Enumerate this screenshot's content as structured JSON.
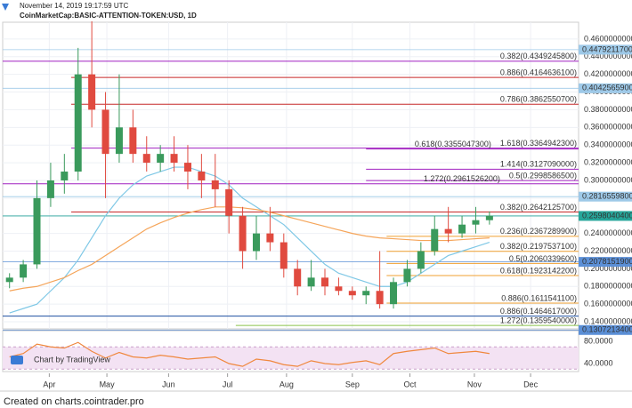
{
  "header": {
    "timestamp": "November 14, 2019 19:17:59 UTC",
    "symbol": "CoinMarketCap:BASIC-ATTENTION-TOKEN:USD, 1D"
  },
  "footer": "Created on charts.cointrader.pro",
  "watermark": "Chart by TradingView",
  "chart_data": [
    {
      "type": "candlestick",
      "grid": true,
      "up_color": "#3a9a5c",
      "down_color": "#e04a3f",
      "xlim": [
        -0.5,
        41.5
      ],
      "xticks": [
        {
          "value": 2.9,
          "label": "Apr"
        },
        {
          "value": 7.1,
          "label": "May"
        },
        {
          "value": 11.6,
          "label": "Jun"
        },
        {
          "value": 15.9,
          "label": "Jul"
        },
        {
          "value": 20.2,
          "label": "Aug"
        },
        {
          "value": 25.0,
          "label": "Sep"
        },
        {
          "value": 29.2,
          "label": "Oct"
        },
        {
          "value": 33.9,
          "label": "Nov"
        },
        {
          "value": 38.0,
          "label": "Dec"
        }
      ],
      "ylim": [
        0.132,
        0.479
      ],
      "yticks": [
        {
          "value": 0.46,
          "label": "0.4600000000"
        },
        {
          "value": 0.44,
          "label": "0.4400000000"
        },
        {
          "value": 0.42,
          "label": "0.4200000000"
        },
        {
          "value": 0.4,
          "label": "0.4000000000"
        },
        {
          "value": 0.38,
          "label": "0.3800000000"
        },
        {
          "value": 0.36,
          "label": "0.3600000000"
        },
        {
          "value": 0.34,
          "label": "0.3400000000"
        },
        {
          "value": 0.32,
          "label": "0.3200000000"
        },
        {
          "value": 0.3,
          "label": "0.3000000000"
        },
        {
          "value": 0.28,
          "label": "0.2800000000"
        },
        {
          "value": 0.26,
          "label": "0.2600000000"
        },
        {
          "value": 0.24,
          "label": "0.2400000000"
        },
        {
          "value": 0.22,
          "label": "0.2200000000"
        },
        {
          "value": 0.2,
          "label": "0.2000000000"
        },
        {
          "value": 0.18,
          "label": "0.1800000000"
        },
        {
          "value": 0.16,
          "label": "0.1600000000"
        },
        {
          "value": 0.14,
          "label": "0.1400000000"
        }
      ],
      "open": [
        0.185,
        0.19,
        0.205,
        0.28,
        0.3,
        0.31,
        0.42,
        0.38,
        0.33,
        0.36,
        0.33,
        0.32,
        0.33,
        0.32,
        0.31,
        0.3,
        0.29,
        0.26,
        0.22,
        0.24,
        0.23,
        0.2,
        0.18,
        0.19,
        0.18,
        0.175,
        0.17,
        0.175,
        0.16,
        0.185,
        0.2,
        0.22,
        0.245,
        0.24,
        0.25,
        0.255
      ],
      "high": [
        0.195,
        0.21,
        0.3,
        0.32,
        0.33,
        0.45,
        0.48,
        0.4,
        0.42,
        0.38,
        0.35,
        0.34,
        0.35,
        0.34,
        0.33,
        0.33,
        0.3,
        0.27,
        0.26,
        0.27,
        0.24,
        0.21,
        0.21,
        0.2,
        0.19,
        0.18,
        0.18,
        0.22,
        0.19,
        0.21,
        0.23,
        0.26,
        0.27,
        0.26,
        0.27,
        0.265
      ],
      "low": [
        0.178,
        0.185,
        0.2,
        0.27,
        0.285,
        0.3,
        0.36,
        0.28,
        0.32,
        0.32,
        0.31,
        0.31,
        0.31,
        0.29,
        0.28,
        0.27,
        0.24,
        0.2,
        0.21,
        0.22,
        0.19,
        0.17,
        0.175,
        0.17,
        0.17,
        0.165,
        0.16,
        0.155,
        0.155,
        0.18,
        0.195,
        0.215,
        0.23,
        0.235,
        0.24,
        0.25
      ],
      "close": [
        0.19,
        0.205,
        0.28,
        0.3,
        0.31,
        0.42,
        0.38,
        0.33,
        0.36,
        0.33,
        0.32,
        0.33,
        0.32,
        0.31,
        0.3,
        0.29,
        0.26,
        0.22,
        0.24,
        0.23,
        0.2,
        0.18,
        0.19,
        0.18,
        0.175,
        0.17,
        0.175,
        0.16,
        0.185,
        0.2,
        0.22,
        0.245,
        0.24,
        0.25,
        0.255,
        0.26
      ],
      "overlays": [
        {
          "color": "#7fc8e6",
          "values": [
            0.15,
            0.155,
            0.16,
            0.175,
            0.19,
            0.21,
            0.235,
            0.26,
            0.28,
            0.295,
            0.305,
            0.31,
            0.315,
            0.315,
            0.31,
            0.305,
            0.295,
            0.28,
            0.27,
            0.26,
            0.25,
            0.235,
            0.22,
            0.205,
            0.195,
            0.19,
            0.185,
            0.18,
            0.18,
            0.185,
            0.195,
            0.205,
            0.215,
            0.22,
            0.225,
            0.23
          ]
        },
        {
          "color": "#f5a55a",
          "values": [
            0.175,
            0.178,
            0.18,
            0.185,
            0.19,
            0.198,
            0.205,
            0.215,
            0.225,
            0.235,
            0.245,
            0.252,
            0.258,
            0.263,
            0.267,
            0.27,
            0.27,
            0.269,
            0.267,
            0.264,
            0.26,
            0.256,
            0.252,
            0.248,
            0.244,
            0.24,
            0.237,
            0.235,
            0.234,
            0.233,
            0.232,
            0.232,
            0.232,
            0.233,
            0.234,
            0.235
          ]
        }
      ],
      "levels": [
        {
          "value": 0.43492458,
          "label": "0.382(0.4349245800)",
          "color": "#a020c0",
          "from": -0.5
        },
        {
          "value": 0.41646361,
          "label": "0.886(0.4164636100)",
          "color": "#c62828",
          "from": 4.5
        },
        {
          "value": 0.38625507,
          "label": "0.786(0.3862550700)",
          "color": "#c62828",
          "from": 4.5
        },
        {
          "value": 0.33649423,
          "label": "1.618(0.3364942300)",
          "color": "#a020c0",
          "from": 4.5
        },
        {
          "value": 0.33550473,
          "label": "0.618(0.3355047300)",
          "color": "#a020c0",
          "from": 26
        },
        {
          "value": 0.312709,
          "label": "1.414(0.3127090000)",
          "color": "#a020c0",
          "from": 26
        },
        {
          "value": 0.29985865,
          "label": "0.5(0.2998586500)",
          "color": "#a020c0",
          "from": 26
        },
        {
          "value": 0.29615262,
          "label": "1.272(0.2961526200)",
          "color": "#a020c0",
          "from": -0.5
        },
        {
          "value": 0.26421257,
          "label": "0.382(0.2642125700)",
          "color": "#c62828",
          "from": 4.5
        },
        {
          "value": 0.23672899,
          "label": "0.236(0.2367289900)",
          "color": "#f0a030",
          "from": 27.5
        },
        {
          "value": 0.21975371,
          "label": "0.382(0.2197537100)",
          "color": "#f0a030",
          "from": 27.5
        },
        {
          "value": 0.20603396,
          "label": "0.5(0.2060339600)",
          "color": "#f0a030",
          "from": 27.5
        },
        {
          "value": 0.19231422,
          "label": "0.618(0.1923142200)",
          "color": "#f0a030",
          "from": 27.5
        },
        {
          "value": 0.16115411,
          "label": "0.886(0.1611541100)",
          "color": "#f0a030",
          "from": 27.5
        },
        {
          "value": 0.1464617,
          "label": "0.886(0.1464617000)",
          "color": "#1e4fa0",
          "from": -0.5
        },
        {
          "value": 0.135954,
          "label": "1.272(0.1359540000)",
          "color": "#8bc34a",
          "from": 16.5
        }
      ],
      "price_markers": [
        {
          "value": 0.44792117,
          "label": "0.4479211700",
          "color": "#9ec9e8"
        },
        {
          "value": 0.40425659,
          "label": "0.4042565900",
          "color": "#9ec9e8"
        },
        {
          "value": 0.28165598,
          "label": "0.2816559800",
          "color": "#9ec9e8"
        },
        {
          "value": 0.25980404,
          "label": "0.2598040400",
          "color": "#26a69a"
        },
        {
          "value": 0.20781519,
          "label": "0.2078151900",
          "color": "#5b8fd6"
        },
        {
          "value": 0.13072134,
          "label": "0.1307213400",
          "color": "#5b8fd6"
        }
      ]
    },
    {
      "type": "line",
      "color": "#f0883e",
      "band": [
        30,
        70
      ],
      "band_color": "#f3e2f3",
      "ylim": [
        25.6,
        99.2
      ],
      "yticks": [
        {
          "value": 80,
          "label": "80.0000"
        },
        {
          "value": 40,
          "label": "40.0000"
        }
      ],
      "values": [
        52,
        58,
        75,
        70,
        68,
        78,
        62,
        50,
        60,
        52,
        50,
        55,
        52,
        48,
        50,
        52,
        40,
        35,
        48,
        45,
        38,
        35,
        45,
        40,
        38,
        42,
        45,
        38,
        58,
        62,
        65,
        68,
        58,
        60,
        62,
        58
      ]
    }
  ]
}
